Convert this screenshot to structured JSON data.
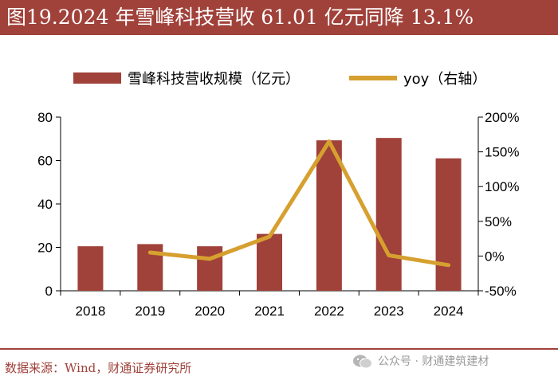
{
  "header": {
    "title": "图19.2024 年雪峰科技营收 61.01 亿元同降 13.1%"
  },
  "footer": {
    "source": "数据来源：Wind，财通证券研究所",
    "watermark": "公众号 · 财通建筑建材",
    "watermark_icon": "wechat-icon"
  },
  "colors": {
    "header_bg": "#a0413a",
    "bar": "#a0413a",
    "line": "#d6a02f"
  },
  "chart_data": {
    "type": "bar",
    "title": "",
    "categories": [
      "2018",
      "2019",
      "2020",
      "2021",
      "2022",
      "2023",
      "2024"
    ],
    "series": [
      {
        "name": "雪峰科技营收规模（亿元）",
        "type": "bar",
        "axis": "left",
        "values": [
          20.5,
          21.5,
          20.5,
          26.2,
          69.3,
          70.4,
          61.01
        ]
      },
      {
        "name": "yoy（右轴）",
        "type": "line",
        "axis": "right",
        "x": [
          "2019",
          "2020",
          "2021",
          "2022",
          "2023",
          "2024"
        ],
        "values": [
          5,
          -4,
          28,
          165,
          1,
          -13.1
        ]
      }
    ],
    "y_left": {
      "min": 0,
      "max": 80,
      "ticks": [
        0,
        20,
        40,
        60,
        80
      ],
      "ticklabels": [
        "0",
        "20",
        "40",
        "60",
        "80"
      ]
    },
    "y_right": {
      "min": -50,
      "max": 200,
      "ticks": [
        -50,
        0,
        50,
        100,
        150,
        200
      ],
      "ticklabels": [
        "-50%",
        "0%",
        "50%",
        "100%",
        "150%",
        "200%"
      ]
    },
    "legend_position": "top-center",
    "grid": false
  }
}
